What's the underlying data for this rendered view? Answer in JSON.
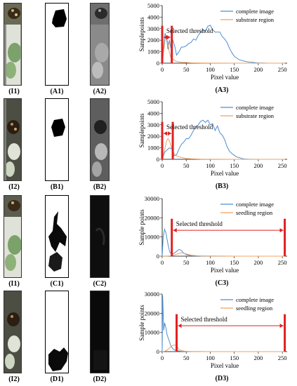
{
  "rows": [
    {
      "photo_cap": "(I1)",
      "mask_cap": "(A1)",
      "gray_cap": "(A2)",
      "chart_cap": "(A3)",
      "mask_shade": "dark",
      "gray_level": "mid"
    },
    {
      "photo_cap": "(I2)",
      "mask_cap": "(B1)",
      "gray_cap": "(B2)",
      "chart_cap": "(B3)",
      "mask_shade": "dark",
      "gray_level": "mid"
    },
    {
      "photo_cap": "(I1)",
      "mask_cap": "(C1)",
      "gray_cap": "(C2)",
      "chart_cap": "(C3)",
      "mask_shade": "dark",
      "gray_level": "black"
    },
    {
      "photo_cap": "(I2)",
      "mask_cap": "(D1)",
      "gray_cap": "(D2)",
      "chart_cap": "(D3)",
      "mask_shade": "dark",
      "gray_level": "black"
    }
  ],
  "colors": {
    "blue": "#4a8fd4",
    "orange": "#f0a060",
    "red": "#e02020"
  },
  "chart_data": [
    {
      "type": "line",
      "xlabel": "Pixel value",
      "ylabel": "Samplepoints",
      "xlim": [
        0,
        260
      ],
      "ylim": [
        0,
        5000
      ],
      "xticks": [
        0,
        50,
        100,
        150,
        200,
        250
      ],
      "yticks": [
        0,
        1000,
        2000,
        3000,
        4000,
        5000
      ],
      "legend_position": "top-right",
      "series": [
        {
          "name": "complete image",
          "color": "blue",
          "x": [
            0,
            3,
            6,
            9,
            12,
            15,
            18,
            22,
            26,
            30,
            35,
            40,
            45,
            50,
            55,
            60,
            65,
            70,
            75,
            80,
            85,
            90,
            95,
            100,
            105,
            110,
            115,
            120,
            125,
            130,
            135,
            140,
            145,
            150,
            155,
            160,
            170,
            180,
            190,
            200,
            210,
            220,
            240,
            255
          ],
          "y": [
            0,
            1500,
            2600,
            2200,
            1200,
            2000,
            1300,
            2000,
            1500,
            700,
            1000,
            1400,
            1400,
            1500,
            1700,
            1800,
            2100,
            2000,
            2400,
            2700,
            2900,
            2800,
            3200,
            3300,
            2900,
            2700,
            2700,
            2700,
            2300,
            2100,
            1800,
            1300,
            900,
            600,
            450,
            300,
            180,
            100,
            60,
            20,
            10,
            0,
            0,
            0
          ]
        },
        {
          "name": "substrate region",
          "color": "orange",
          "x": [
            0,
            3,
            6,
            9,
            12,
            15,
            18,
            22,
            26,
            30,
            40,
            50,
            60,
            80,
            100,
            150,
            200,
            255
          ],
          "y": [
            0,
            1000,
            2000,
            2200,
            1800,
            900,
            500,
            350,
            250,
            150,
            80,
            60,
            30,
            10,
            5,
            0,
            0,
            0
          ]
        }
      ],
      "annotation": {
        "text": "Selected threshold",
        "from": 0,
        "to": 20
      }
    },
    {
      "type": "line",
      "xlabel": "Pixel value",
      "ylabel": "Samplepoints",
      "xlim": [
        0,
        260
      ],
      "ylim": [
        0,
        5000
      ],
      "xticks": [
        0,
        50,
        100,
        150,
        200,
        250
      ],
      "yticks": [
        0,
        1000,
        2000,
        3000,
        4000,
        5000
      ],
      "legend_position": "top-right",
      "series": [
        {
          "name": "complete image",
          "color": "blue",
          "x": [
            0,
            5,
            10,
            15,
            20,
            25,
            30,
            35,
            40,
            45,
            50,
            55,
            60,
            65,
            70,
            75,
            80,
            85,
            90,
            95,
            100,
            105,
            110,
            115,
            120,
            125,
            130,
            135,
            140,
            145,
            150,
            155,
            160,
            165,
            170,
            180,
            200,
            255
          ],
          "y": [
            0,
            600,
            800,
            1000,
            900,
            300,
            400,
            900,
            1300,
            1500,
            1800,
            1800,
            2100,
            2500,
            2800,
            3000,
            3300,
            3400,
            3200,
            3400,
            3000,
            3100,
            2500,
            2900,
            2300,
            2100,
            1700,
            1100,
            700,
            500,
            350,
            200,
            150,
            80,
            30,
            10,
            0,
            0
          ]
        },
        {
          "name": "substrate region",
          "color": "orange",
          "x": [
            0,
            3,
            6,
            9,
            12,
            15,
            18,
            21,
            25,
            30,
            40,
            50,
            60,
            80,
            100,
            150,
            200,
            255
          ],
          "y": [
            0,
            500,
            1000,
            1600,
            1800,
            1600,
            1200,
            800,
            500,
            300,
            150,
            80,
            40,
            10,
            5,
            0,
            0,
            0
          ]
        }
      ],
      "annotation": {
        "text": "Selected threshold",
        "from": 0,
        "to": 22
      }
    },
    {
      "type": "line",
      "xlabel": "Pixel value",
      "ylabel": "Sample points",
      "xlim": [
        0,
        260
      ],
      "ylim": [
        0,
        30000
      ],
      "xticks": [
        0,
        50,
        100,
        150,
        200,
        250
      ],
      "yticks": [
        0,
        10000,
        20000,
        30000
      ],
      "legend_position": "top-right",
      "series": [
        {
          "name": "complete image",
          "color": "blue",
          "x": [
            0,
            2,
            5,
            8,
            10,
            13,
            16,
            20,
            25,
            30,
            35,
            40,
            45,
            50,
            60,
            70,
            80,
            100,
            150,
            200,
            255
          ],
          "y": [
            0,
            10000,
            14000,
            12000,
            9000,
            5000,
            2000,
            1000,
            1500,
            2500,
            3500,
            3000,
            1500,
            800,
            300,
            150,
            80,
            30,
            0,
            0,
            0
          ]
        },
        {
          "name": "seedling region",
          "color": "orange",
          "x": [
            0,
            5,
            10,
            20,
            30,
            40,
            50,
            60,
            80,
            100,
            150,
            200,
            255
          ],
          "y": [
            0,
            20,
            50,
            200,
            1000,
            1800,
            1200,
            500,
            100,
            20,
            0,
            0,
            0
          ]
        }
      ],
      "annotation": {
        "text": "Selected threshold",
        "from": 20,
        "to": 255
      }
    },
    {
      "type": "line",
      "xlabel": "Pixel value",
      "ylabel": "Sample points",
      "xlim": [
        0,
        260
      ],
      "ylim": [
        0,
        30000
      ],
      "xticks": [
        0,
        50,
        100,
        150,
        200,
        250
      ],
      "yticks": [
        0,
        10000,
        20000,
        30000
      ],
      "legend_position": "top-right",
      "series": [
        {
          "name": "complete image",
          "color": "blue",
          "x": [
            0,
            1,
            3,
            5,
            8,
            10,
            14,
            18,
            22,
            26,
            30,
            35,
            40,
            50,
            60,
            80,
            100,
            150,
            200,
            255
          ],
          "y": [
            0,
            29000,
            11000,
            15000,
            12000,
            9000,
            6000,
            3000,
            1500,
            800,
            600,
            300,
            150,
            80,
            40,
            20,
            0,
            0,
            0,
            0
          ]
        },
        {
          "name": "seedling region",
          "color": "orange",
          "x": [
            0,
            5,
            10,
            15,
            20,
            25,
            28,
            32,
            36,
            40,
            50,
            60,
            80,
            100,
            150,
            255
          ],
          "y": [
            0,
            200,
            800,
            1800,
            3000,
            3500,
            3200,
            2200,
            1000,
            500,
            150,
            50,
            10,
            0,
            0,
            0
          ]
        }
      ],
      "annotation": {
        "text": "Selected threshold",
        "from": 30,
        "to": 255
      }
    }
  ]
}
